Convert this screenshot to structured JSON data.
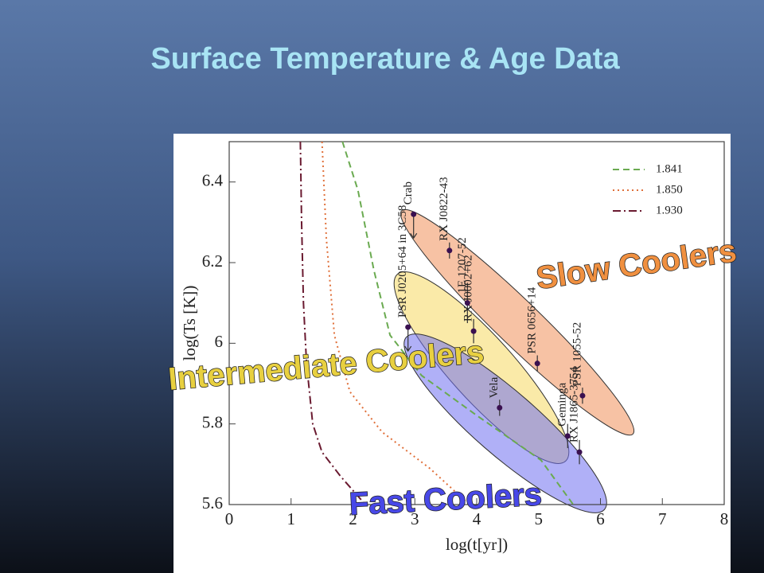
{
  "slide": {
    "title": "Surface Temperature & Age Data"
  },
  "chart_data": {
    "type": "scatter",
    "x_label": "log(t[yr])",
    "y_label": "log(Ts [K])",
    "xlim": [
      0,
      8
    ],
    "ylim": [
      5.6,
      6.5
    ],
    "xticks": [
      0,
      1,
      2,
      3,
      4,
      5,
      6,
      7,
      8
    ],
    "yticks": [
      5.6,
      5.8,
      6,
      6.2,
      6.4
    ],
    "legend": "upper right",
    "series": [
      {
        "name": "1.841",
        "color": "#6aaa50",
        "dash": "8 5",
        "x": [
          1.83,
          2.08,
          2.34,
          2.6,
          3.11,
          4.01,
          5.04,
          5.56
        ],
        "y": [
          6.5,
          6.38,
          6.18,
          6.02,
          5.92,
          5.82,
          5.71,
          5.6
        ]
      },
      {
        "name": "1.850",
        "color": "#e0703a",
        "dash": "2 4",
        "x": [
          1.5,
          1.57,
          1.7,
          1.95,
          2.47,
          3.24,
          3.88
        ],
        "y": [
          6.5,
          6.26,
          6.02,
          5.88,
          5.78,
          5.69,
          5.6
        ]
      },
      {
        "name": "1.930",
        "color": "#6a1a30",
        "dash": "10 4 2 4",
        "x": [
          1.15,
          1.17,
          1.2,
          1.25,
          1.35,
          1.5,
          1.8,
          2.2
        ],
        "y": [
          6.5,
          6.3,
          6.1,
          5.95,
          5.8,
          5.73,
          5.67,
          5.6
        ]
      }
    ],
    "points": {
      "names": [
        "Crab",
        "RX J0822-43",
        "1E 1207-52",
        "RX J0002+62",
        "PSR J0205+64 in 3C58",
        "PSR 0656+14",
        "Vela",
        "Geminga",
        "PSR 1055-52",
        "RX J1865-3754"
      ],
      "x": [
        2.98,
        3.56,
        3.85,
        3.95,
        2.89,
        4.98,
        4.37,
        5.47,
        5.71,
        5.66
      ],
      "y": [
        6.32,
        6.23,
        6.1,
        6.03,
        6.04,
        5.95,
        5.84,
        5.77,
        5.87,
        5.73
      ],
      "yerr": [
        0,
        0.02,
        0.05,
        0.03,
        0,
        0.02,
        0.02,
        0.03,
        0.02,
        0.03
      ],
      "upper_limit": [
        true,
        false,
        false,
        false,
        true,
        false,
        false,
        false,
        false,
        false
      ],
      "color": "#3a1050"
    },
    "annotations": [
      "Slow Coolers",
      "Intermediate Coolers",
      "Fast Coolers"
    ]
  }
}
